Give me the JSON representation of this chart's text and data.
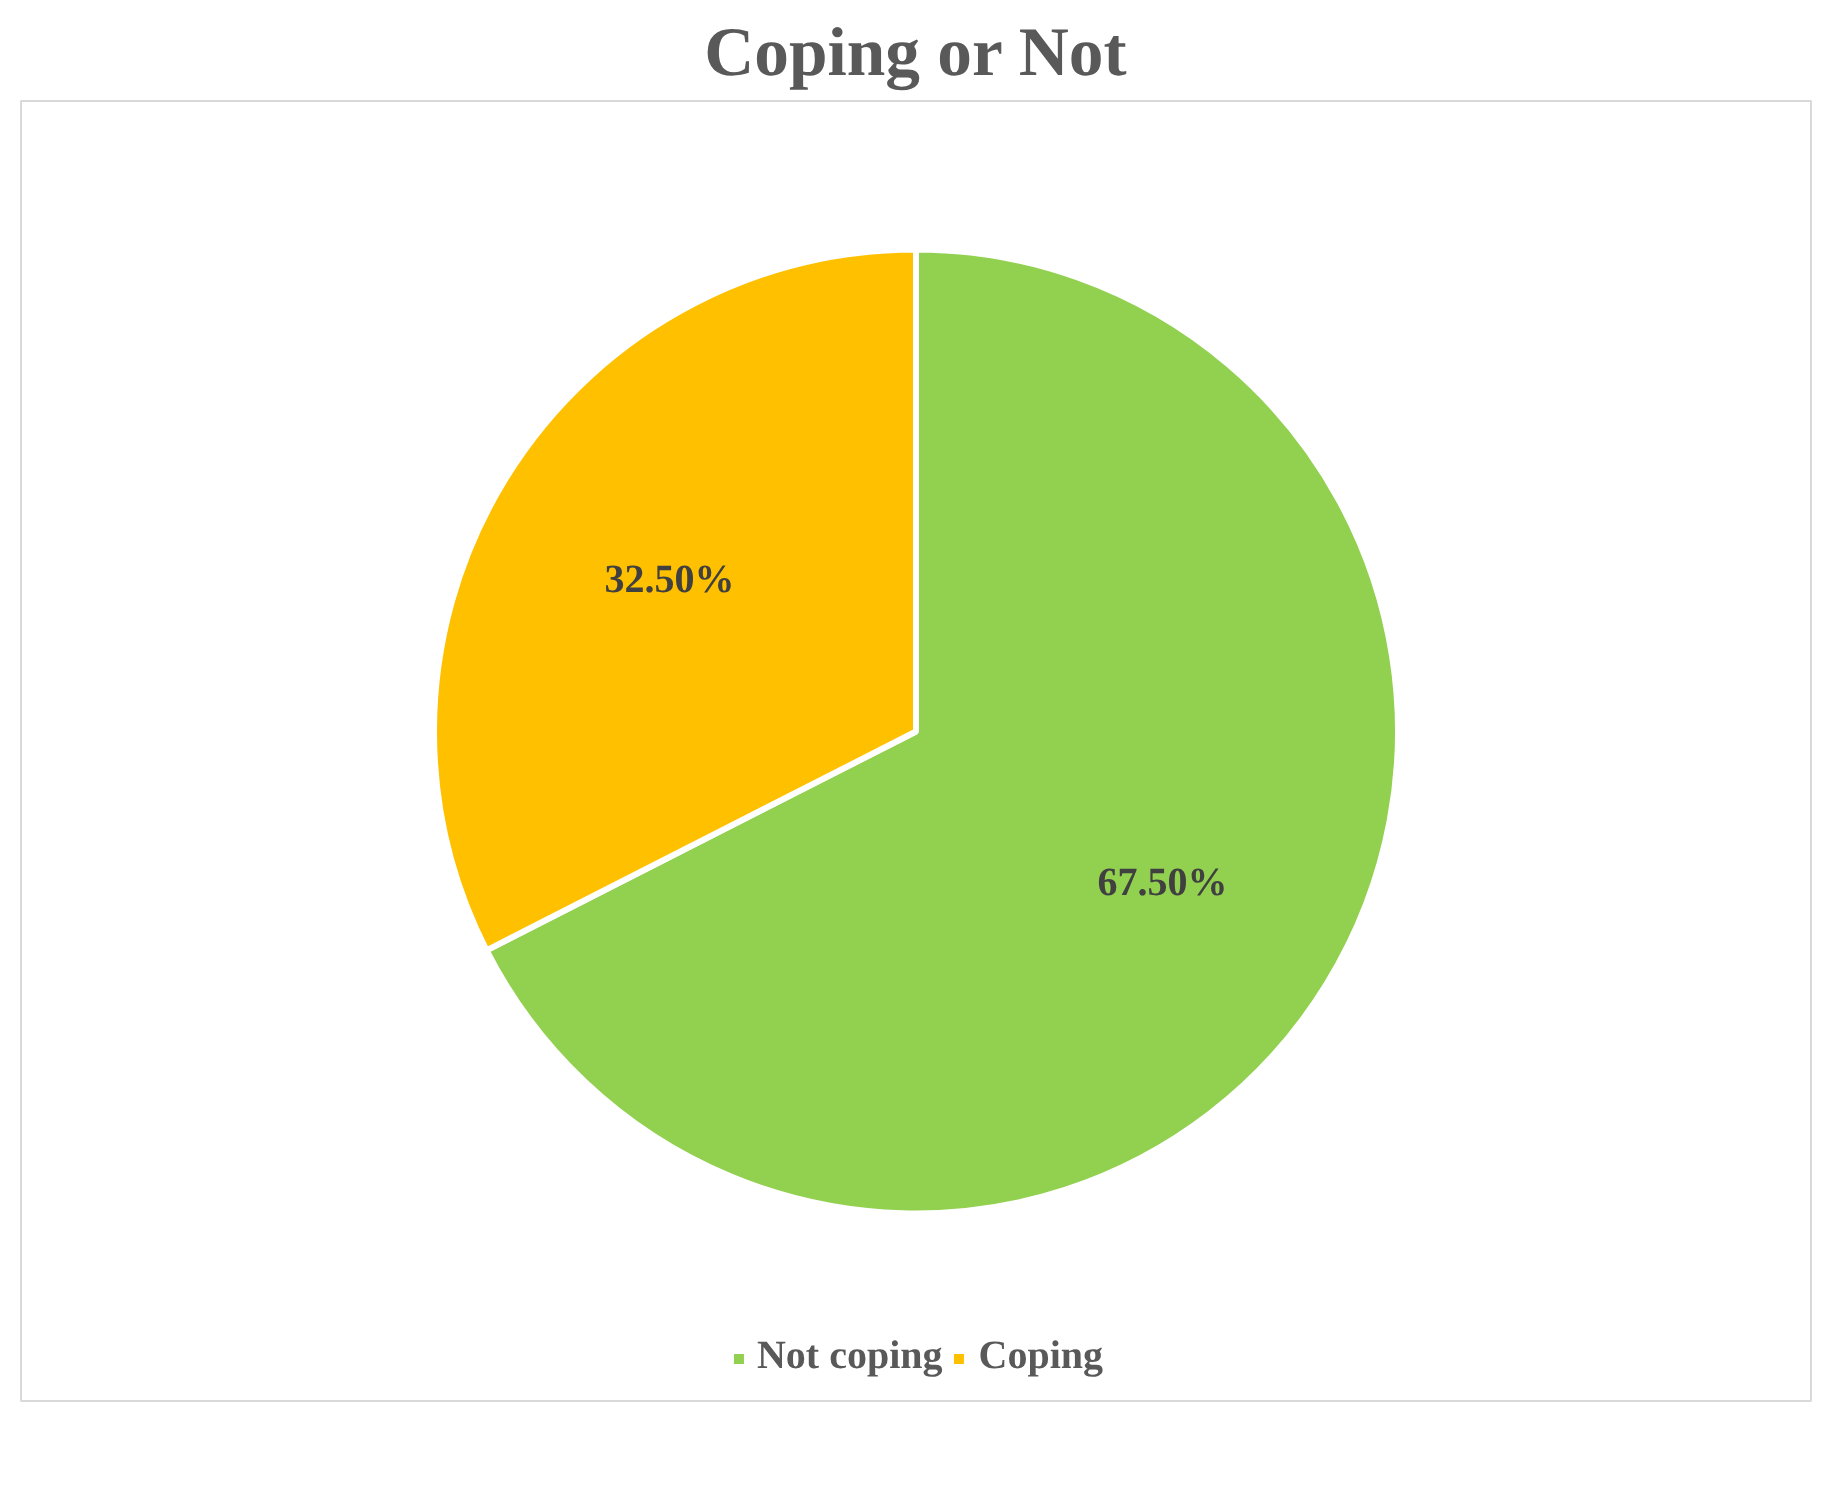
{
  "chart_data": {
    "type": "pie",
    "title": "Coping or Not",
    "categories": [
      "Not coping",
      "Coping"
    ],
    "values": [
      67.5,
      32.5
    ],
    "colors": [
      "#92d050",
      "#ffc000"
    ],
    "value_labels": [
      "67.50%",
      "32.50%"
    ],
    "legend": "bottom"
  }
}
